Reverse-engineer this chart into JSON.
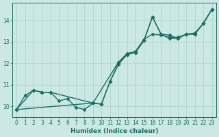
{
  "xlabel": "Humidex (Indice chaleur)",
  "bg_color": "#cce8e4",
  "grid_color": "#aad0cc",
  "line_color": "#1a6e60",
  "xlim": [
    -0.5,
    23.5
  ],
  "ylim": [
    9.5,
    14.8
  ],
  "yticks": [
    10,
    11,
    12,
    13,
    14
  ],
  "xticks": [
    0,
    1,
    2,
    3,
    4,
    5,
    6,
    7,
    8,
    9,
    10,
    11,
    12,
    13,
    14,
    15,
    16,
    17,
    18,
    19,
    20,
    21,
    22,
    23
  ],
  "series1_x": [
    0,
    1,
    2,
    3,
    4,
    5,
    6,
    7,
    8,
    9,
    10,
    11,
    12,
    13,
    14,
    15,
    16,
    17,
    18,
    19,
    20,
    21,
    22,
    23
  ],
  "series1_y": [
    9.85,
    10.5,
    10.75,
    10.65,
    10.65,
    10.25,
    10.35,
    9.95,
    9.85,
    10.15,
    10.1,
    11.15,
    11.95,
    12.4,
    12.5,
    13.05,
    14.15,
    13.35,
    13.3,
    13.15,
    13.35,
    13.35,
    13.85,
    14.5
  ],
  "series2_x": [
    0,
    2,
    3,
    4,
    9,
    10,
    11,
    12,
    13,
    14,
    15,
    16,
    17,
    18,
    19,
    20,
    21,
    22,
    23
  ],
  "series2_y": [
    9.85,
    10.75,
    10.65,
    10.65,
    10.15,
    10.1,
    11.15,
    12.0,
    12.4,
    12.5,
    13.05,
    14.15,
    13.35,
    13.15,
    13.15,
    13.35,
    13.35,
    13.85,
    14.5
  ],
  "series3_x": [
    0,
    9,
    12,
    13,
    14,
    15,
    16,
    17,
    18,
    19,
    20,
    21,
    22,
    23
  ],
  "series3_y": [
    9.85,
    10.15,
    12.05,
    12.45,
    12.55,
    13.1,
    13.35,
    13.3,
    13.2,
    13.2,
    13.35,
    13.4,
    13.85,
    14.5
  ],
  "marker_size": 2.5,
  "line_width": 1.0
}
